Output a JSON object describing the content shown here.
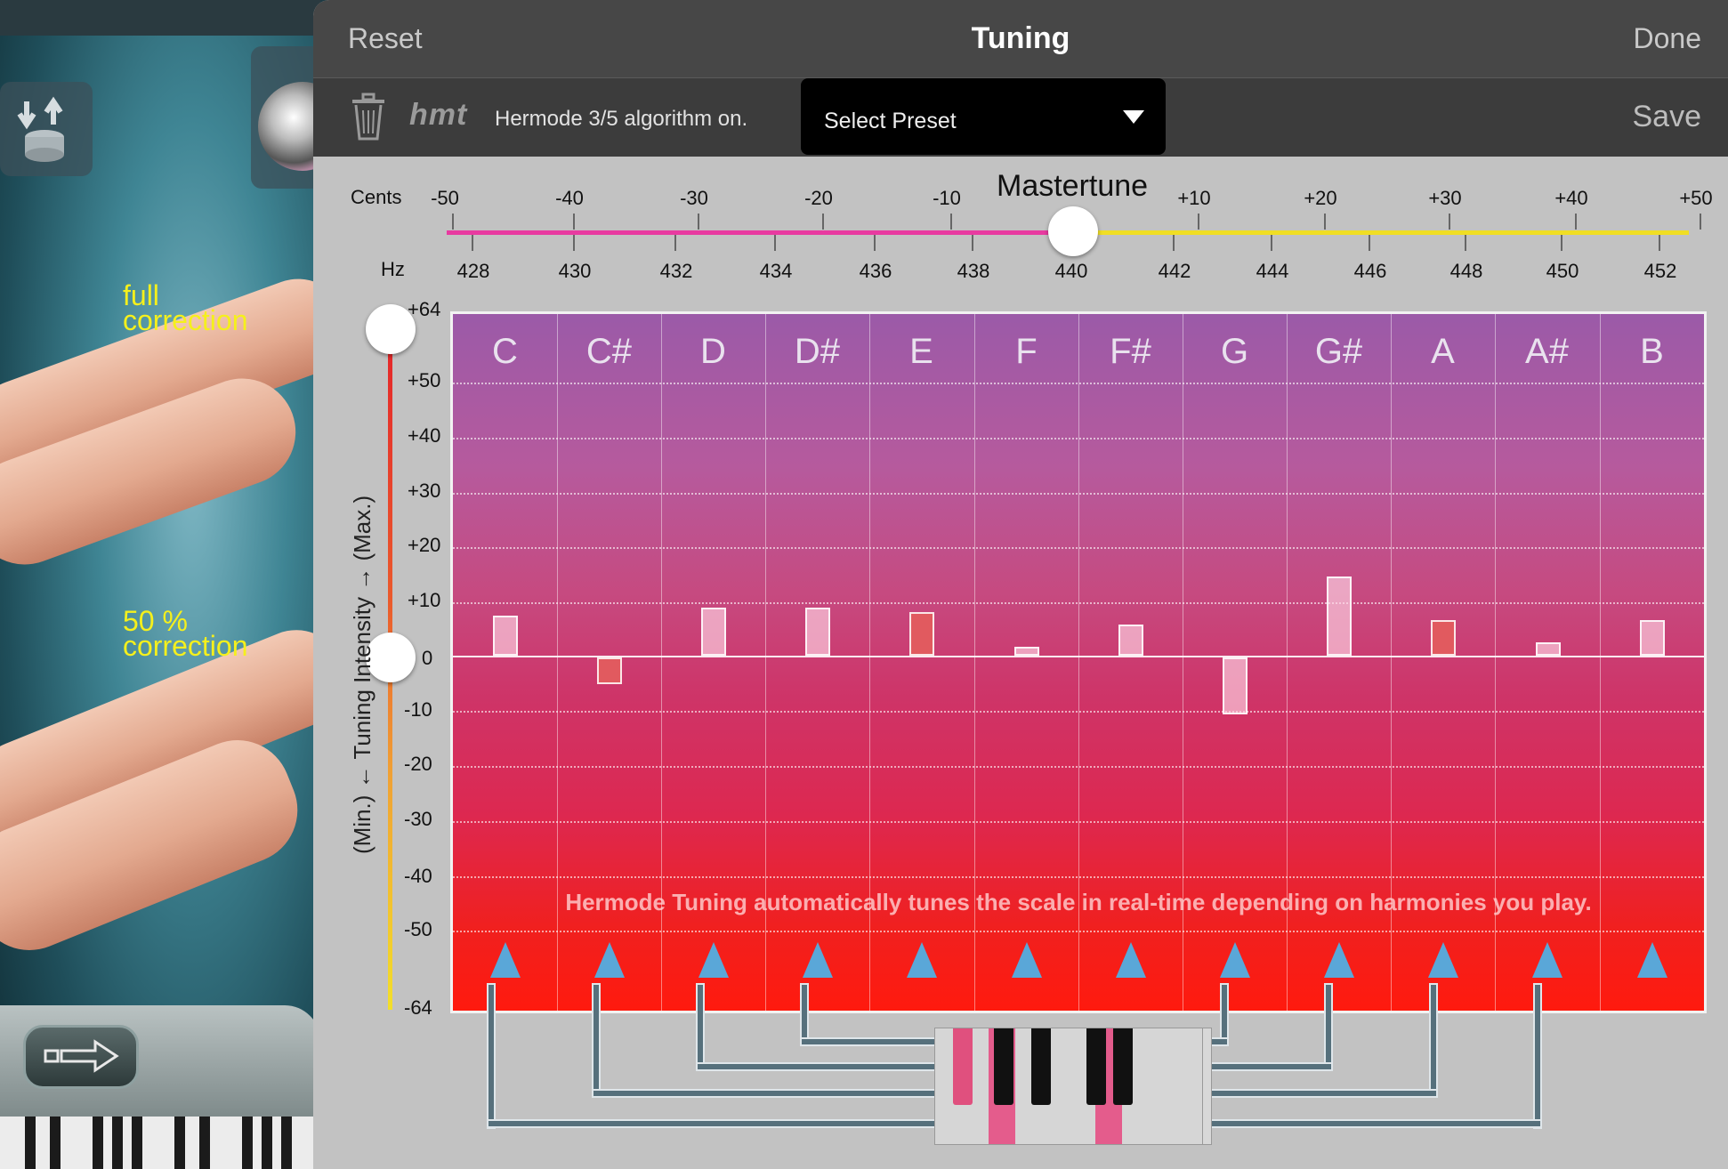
{
  "window": {
    "title": "Tuning",
    "reset_label": "Reset",
    "done_label": "Done"
  },
  "toolbar": {
    "trash_icon": "trash-icon",
    "hmt_logo": "hmt",
    "status": "Hermode 3/5 algorithm on.",
    "preset_placeholder": "Select Preset",
    "save_label": "Save"
  },
  "mastertune": {
    "title": "Mastertune",
    "cents_label": "Cents",
    "hz_label": "Hz",
    "cents_ticks": [
      "-50",
      "-40",
      "-30",
      "-20",
      "-10",
      "+10",
      "+20",
      "+30",
      "+40",
      "+50"
    ],
    "hz_ticks": [
      "428",
      "430",
      "432",
      "434",
      "436",
      "438",
      "440",
      "442",
      "444",
      "446",
      "448",
      "450",
      "452"
    ],
    "value_hz": 440,
    "value_cents": 0,
    "colors": {
      "negative": "#e83aa0",
      "positive": "#f0de24"
    }
  },
  "intensity": {
    "axis_label": "(Min.) ← Tuning Intensity → (Max.)",
    "y_labels": [
      "+64",
      "+50",
      "+40",
      "+30",
      "+20",
      "+10",
      "0",
      "-10",
      "-20",
      "-30",
      "-40",
      "-50",
      "-64"
    ],
    "thumb_values": [
      64,
      0
    ]
  },
  "hand_labels": {
    "full_line1": "full",
    "full_line2": "correction",
    "half_line1": "50 %",
    "half_line2": "correction"
  },
  "notes": [
    {
      "name": "C",
      "cents": 9,
      "color": "light"
    },
    {
      "name": "C#",
      "cents": -6,
      "color": "red"
    },
    {
      "name": "D",
      "cents": 11,
      "color": "light"
    },
    {
      "name": "D#",
      "cents": 11,
      "color": "light"
    },
    {
      "name": "E",
      "cents": 10,
      "color": "red"
    },
    {
      "name": "F",
      "cents": 2,
      "color": "light"
    },
    {
      "name": "F#",
      "cents": 7,
      "color": "light"
    },
    {
      "name": "G",
      "cents": -13,
      "color": "light"
    },
    {
      "name": "G#",
      "cents": 18,
      "color": "light"
    },
    {
      "name": "A",
      "cents": 8,
      "color": "red"
    },
    {
      "name": "A#",
      "cents": 3,
      "color": "light"
    },
    {
      "name": "B",
      "cents": 8,
      "color": "light"
    }
  ],
  "hint": "Hermode Tuning automatically tunes the scale in real-time depending on harmonies you play.",
  "nav": {
    "arrow_icon": "arrow-right-icon"
  }
}
